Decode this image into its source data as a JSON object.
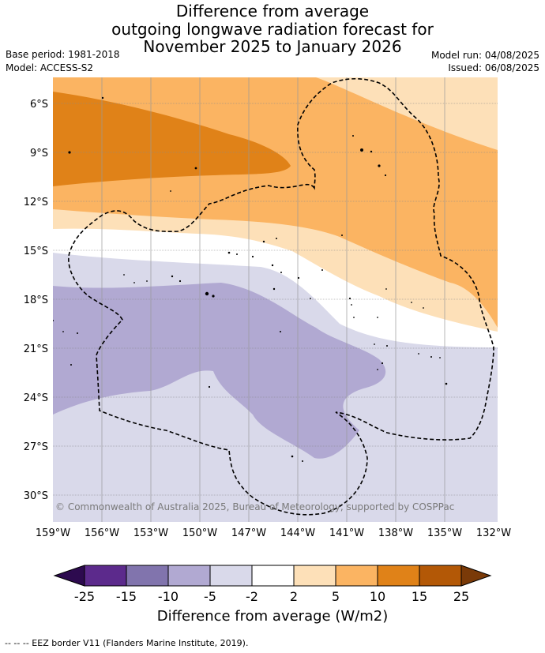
{
  "title": {
    "line1": "Difference from average",
    "line2": "outgoing longwave radiation forecast for",
    "line3": "November 2025 to January 2026"
  },
  "meta": {
    "base_period": "Base period: 1981-2018",
    "model": "Model: ACCESS-S2",
    "model_run": "Model run: 04/08/2025",
    "issued": "Issued: 06/08/2025"
  },
  "axes": {
    "lat_labels": [
      "6°S",
      "9°S",
      "12°S",
      "15°S",
      "18°S",
      "21°S",
      "24°S",
      "27°S",
      "30°S"
    ],
    "lon_labels": [
      "159°W",
      "156°W",
      "153°W",
      "150°W",
      "147°W",
      "144°W",
      "141°W",
      "138°W",
      "135°W",
      "132°W"
    ]
  },
  "credit": "© Commonwealth of Australia 2025, Bureau of Meteorology, supported by COSPPac",
  "colorbar": {
    "ticks": [
      "-25",
      "-15",
      "-10",
      "-5",
      "-2",
      "2",
      "5",
      "10",
      "15",
      "25"
    ],
    "title": "Difference from average (W/m2)",
    "colors": {
      "under": "#2d0a4f",
      "bins": [
        "#5c2a8c",
        "#8174ad",
        "#b1a9d2",
        "#d9d9ea",
        "#ffffff",
        "#fde0b8",
        "#fbb462",
        "#e08218",
        "#b35806"
      ],
      "over": "#7a3a08"
    }
  },
  "map_colors": {
    "pos_2_5": "#fde0b8",
    "pos_5_10": "#fbb462",
    "pos_10_15": "#e08218",
    "neg_2_5": "#d9d9ea",
    "neg_5_10": "#b1a9d2"
  },
  "footer": "--  --  -- EEZ border V11 (Flanders Marine Institute, 2019)."
}
